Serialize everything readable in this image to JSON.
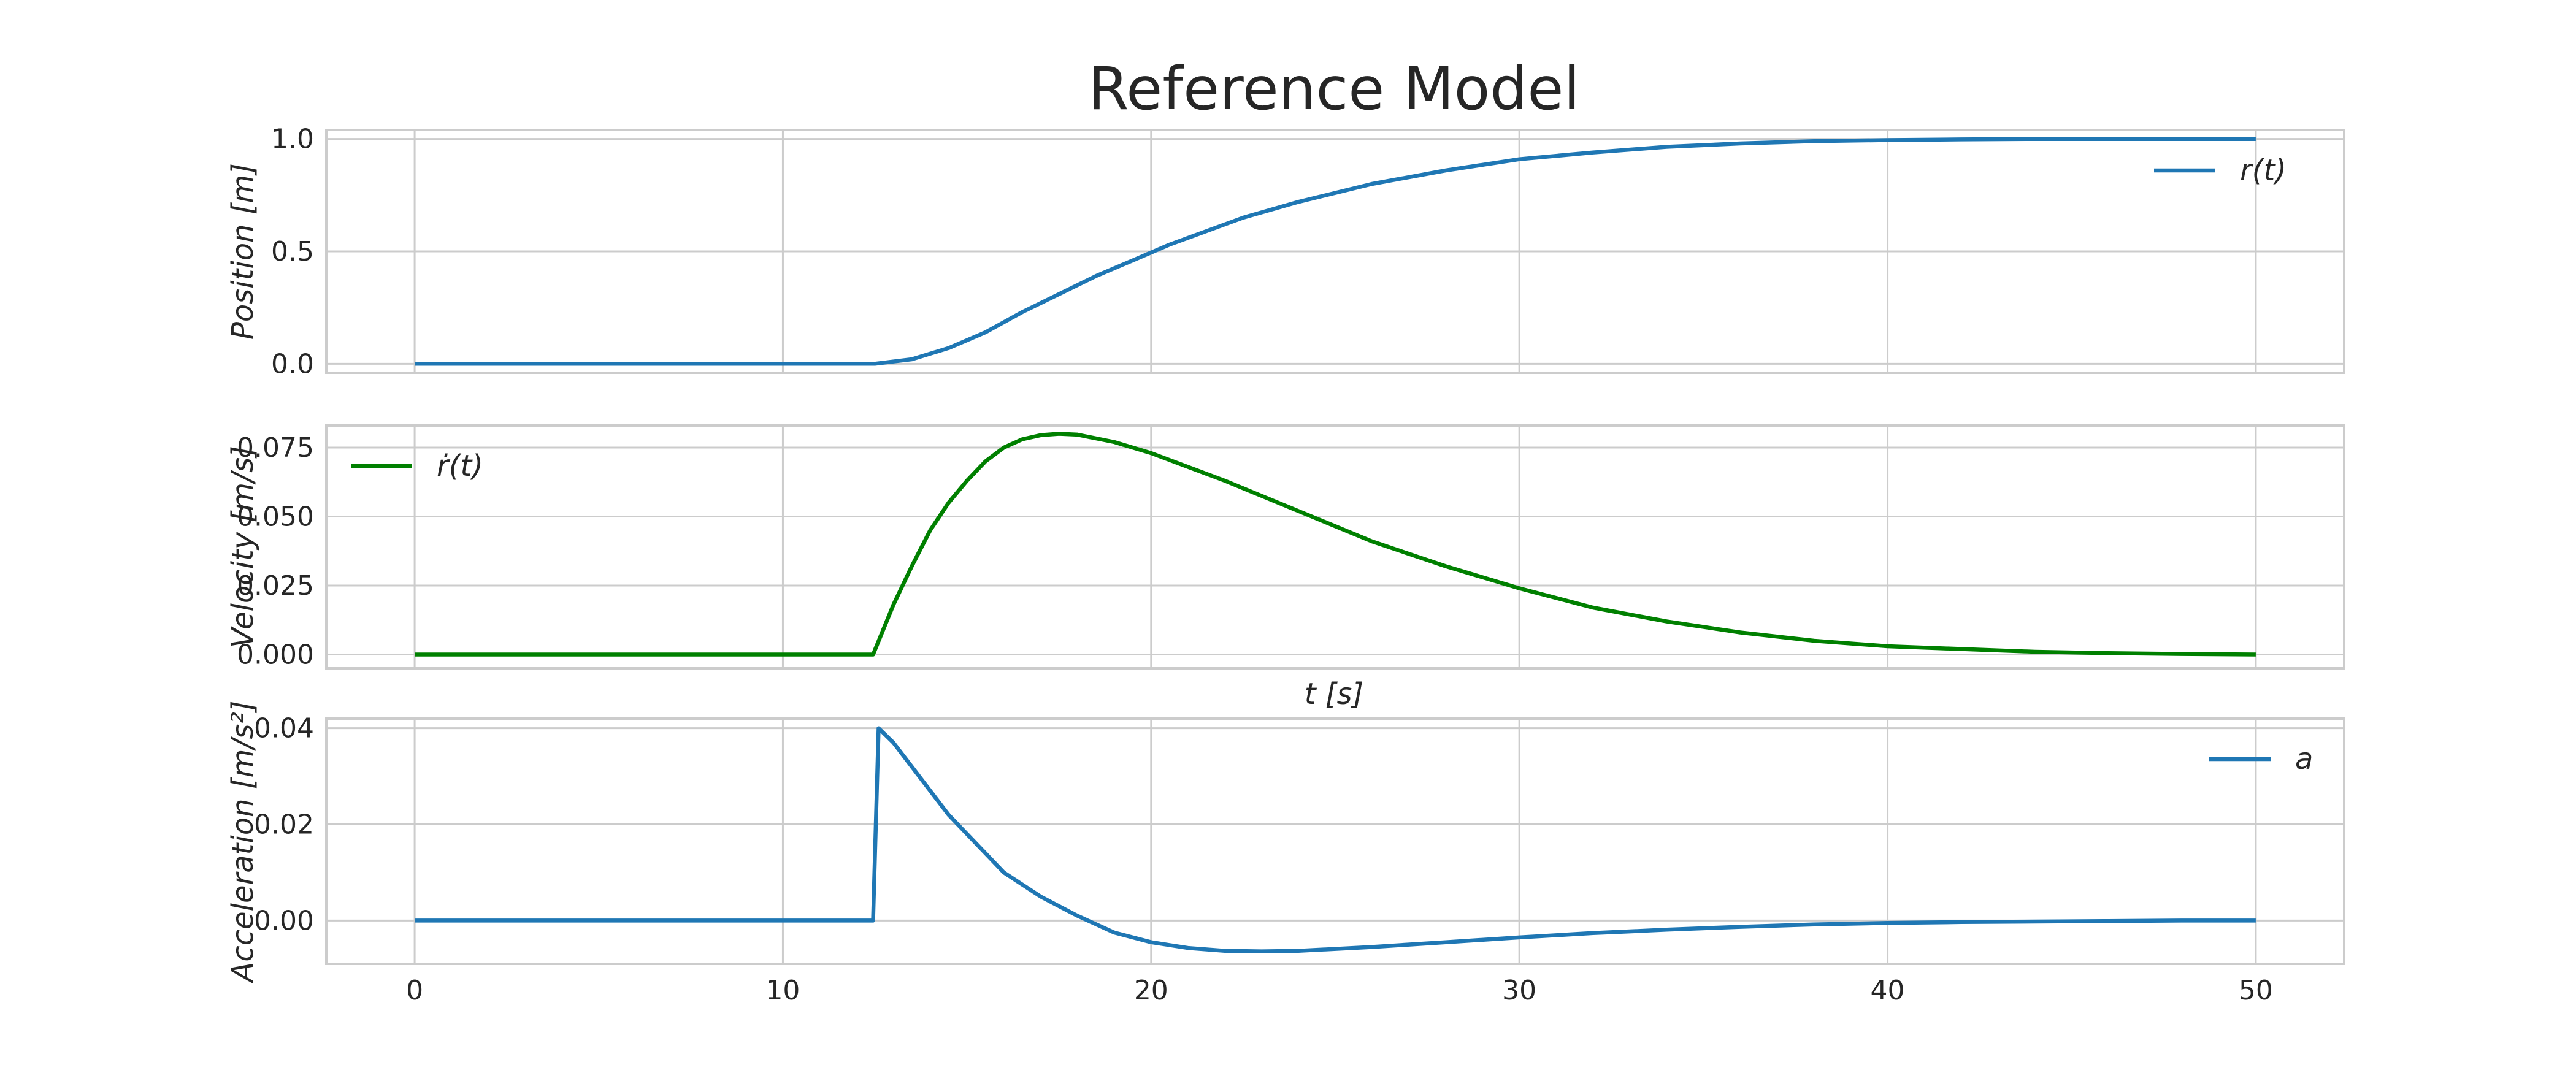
{
  "chart_data": {
    "type": "line",
    "title": "Reference Model",
    "x_ticks": [
      0,
      10,
      20,
      30,
      40,
      50
    ],
    "xlim": [
      -2.4,
      52.4
    ],
    "xlabel_between": "t [s]",
    "subplots": [
      {
        "ylabel": "Position [m]",
        "ylim": [
          -0.04,
          1.04
        ],
        "y_ticks": [
          0.0,
          0.5,
          1.0
        ],
        "y_tick_labels": [
          "0.0",
          "0.5",
          "1.0"
        ],
        "legend": "top-right",
        "grid": true,
        "series": [
          {
            "name": "r(t)",
            "color": "#1f77b4",
            "x": [
              0,
              10,
              12.5,
              13.5,
              14.5,
              15.5,
              16.5,
              17.5,
              18.5,
              19.5,
              20.5,
              21.5,
              22.5,
              24,
              26,
              28,
              30,
              32,
              34,
              36,
              38,
              40,
              42,
              44,
              46,
              48,
              50
            ],
            "y": [
              0,
              0,
              0,
              0.02,
              0.07,
              0.14,
              0.23,
              0.31,
              0.39,
              0.46,
              0.53,
              0.59,
              0.65,
              0.72,
              0.8,
              0.86,
              0.91,
              0.94,
              0.965,
              0.98,
              0.99,
              0.995,
              0.998,
              1.0,
              1.0,
              1.0,
              1.0
            ]
          }
        ]
      },
      {
        "ylabel": "Velocity  [m/s]",
        "ylim": [
          -0.005,
          0.083
        ],
        "y_ticks": [
          0.0,
          0.025,
          0.05,
          0.075
        ],
        "y_tick_labels": [
          "0.000",
          "0.025",
          "0.050",
          "0.075"
        ],
        "legend": "top-left",
        "grid": true,
        "series": [
          {
            "name": "ṙ(t)",
            "color": "#008000",
            "x": [
              0,
              10,
              12.45,
              13,
              13.5,
              14,
              14.5,
              15,
              15.5,
              16,
              16.5,
              17,
              17.5,
              18,
              19,
              20,
              22,
              24,
              26,
              28,
              30,
              32,
              34,
              36,
              38,
              40,
              42,
              44,
              46,
              48,
              50
            ],
            "y": [
              0,
              0,
              0,
              0.018,
              0.032,
              0.045,
              0.055,
              0.063,
              0.07,
              0.075,
              0.078,
              0.0795,
              0.08,
              0.0797,
              0.077,
              0.073,
              0.063,
              0.052,
              0.041,
              0.032,
              0.024,
              0.017,
              0.012,
              0.008,
              0.005,
              0.003,
              0.002,
              0.001,
              0.0005,
              0.0002,
              0.0
            ]
          }
        ]
      },
      {
        "ylabel": "Acceleration [m/s²]",
        "ylim": [
          -0.009,
          0.042
        ],
        "y_ticks": [
          0.0,
          0.02,
          0.04
        ],
        "y_tick_labels": [
          "0.00",
          "0.02",
          "0.04"
        ],
        "legend": "top-right",
        "grid": true,
        "series": [
          {
            "name": "a",
            "color": "#1f77b4",
            "x": [
              0,
              10,
              12.45,
              12.6,
              13,
              13.5,
              14,
              14.5,
              15,
              15.5,
              16,
              17,
              18,
              19,
              20,
              21,
              22,
              23,
              24,
              26,
              28,
              30,
              32,
              34,
              36,
              38,
              40,
              42,
              44,
              46,
              48,
              50
            ],
            "y": [
              0,
              0,
              0,
              0.04,
              0.037,
              0.032,
              0.027,
              0.022,
              0.018,
              0.014,
              0.01,
              0.005,
              0.001,
              -0.0025,
              -0.0045,
              -0.0057,
              -0.0063,
              -0.0064,
              -0.0063,
              -0.0055,
              -0.0045,
              -0.0035,
              -0.0026,
              -0.0019,
              -0.0013,
              -0.0008,
              -0.0005,
              -0.0003,
              -0.0002,
              -0.0001,
              0.0,
              0.0
            ]
          }
        ]
      }
    ]
  }
}
